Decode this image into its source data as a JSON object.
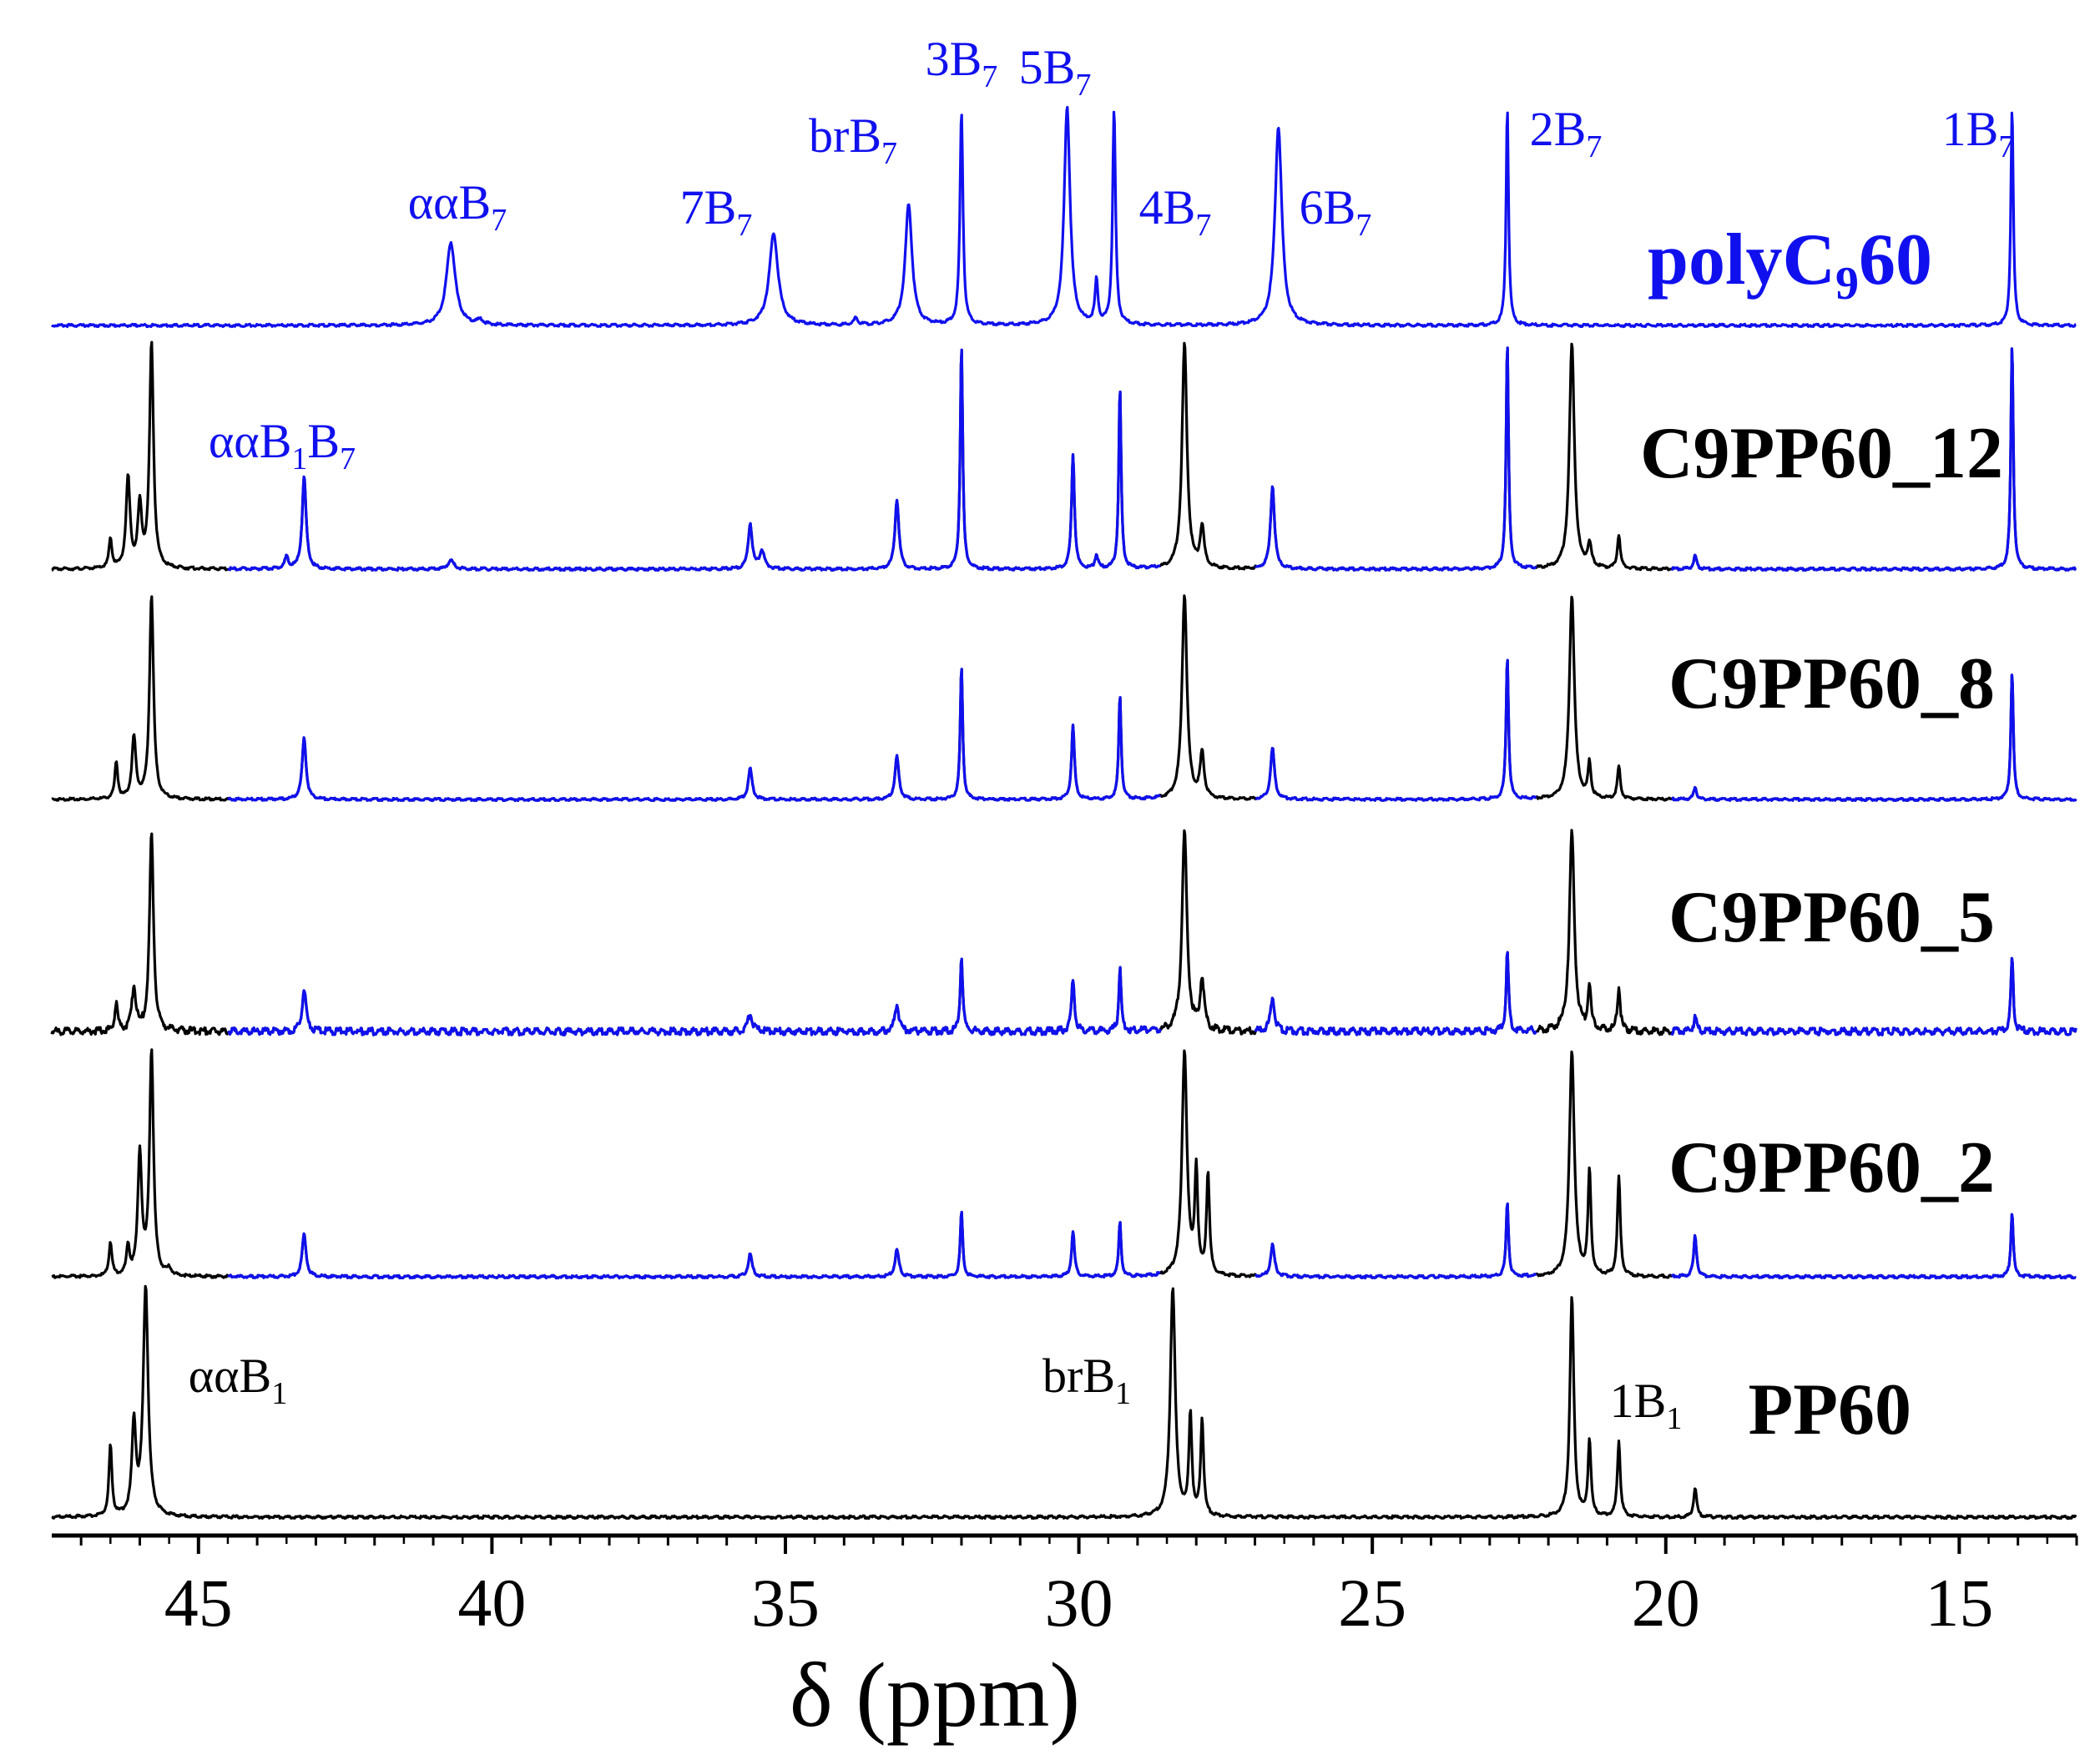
{
  "chart_data": {
    "type": "line",
    "title": "",
    "xlabel": "δ (ppm)",
    "ylabel": "",
    "x_reversed": true,
    "xlim": [
      47.5,
      13.0
    ],
    "x_ticks": [
      45,
      40,
      35,
      30,
      25,
      20,
      15
    ],
    "grid": false,
    "colors": {
      "comonomer": "#1010ee",
      "propylene": "#000000",
      "axis": "#000000"
    },
    "series": [
      {
        "name": "polyC",
        "name_sub": "9",
        "name_tail": "60",
        "color": "#1010ee",
        "peaks": [
          {
            "ppm": 40.7,
            "h": 0.38,
            "w": 0.09
          },
          {
            "ppm": 40.2,
            "h": 0.02,
            "w": 0.06
          },
          {
            "ppm": 35.2,
            "h": 0.42,
            "w": 0.09
          },
          {
            "ppm": 33.8,
            "h": 0.03,
            "w": 0.04
          },
          {
            "ppm": 32.9,
            "h": 0.55,
            "w": 0.07
          },
          {
            "ppm": 32.0,
            "h": 0.98,
            "w": 0.03
          },
          {
            "ppm": 30.2,
            "h": 1.0,
            "w": 0.06
          },
          {
            "ppm": 29.7,
            "h": 0.2,
            "w": 0.03
          },
          {
            "ppm": 29.4,
            "h": 0.98,
            "w": 0.03
          },
          {
            "ppm": 26.6,
            "h": 0.91,
            "w": 0.07
          },
          {
            "ppm": 22.7,
            "h": 1.0,
            "w": 0.025
          },
          {
            "ppm": 14.1,
            "h": 1.0,
            "w": 0.025
          }
        ]
      },
      {
        "name": "C9PP60_12",
        "color": "#000000",
        "blue_segments": [
          [
            44.5,
            28.6
          ],
          [
            27.0,
            22.2
          ],
          [
            19.9,
            13.0
          ]
        ],
        "peaks": [
          {
            "ppm": 46.5,
            "h": 0.13,
            "w": 0.03
          },
          {
            "ppm": 46.2,
            "h": 0.4,
            "w": 0.04
          },
          {
            "ppm": 46.0,
            "h": 0.27,
            "w": 0.04
          },
          {
            "ppm": 45.8,
            "h": 1.0,
            "w": 0.04
          },
          {
            "ppm": 43.2,
            "h": 0.41,
            "w": 0.04
          },
          {
            "ppm": 43.5,
            "h": 0.05,
            "w": 0.04
          },
          {
            "ppm": 40.7,
            "h": 0.04,
            "w": 0.06
          },
          {
            "ppm": 35.6,
            "h": 0.2,
            "w": 0.04
          },
          {
            "ppm": 35.4,
            "h": 0.08,
            "w": 0.05
          },
          {
            "ppm": 33.1,
            "h": 0.31,
            "w": 0.04
          },
          {
            "ppm": 32.0,
            "h": 1.0,
            "w": 0.025
          },
          {
            "ppm": 30.1,
            "h": 0.51,
            "w": 0.03
          },
          {
            "ppm": 29.7,
            "h": 0.06,
            "w": 0.03
          },
          {
            "ppm": 29.3,
            "h": 0.8,
            "w": 0.025
          },
          {
            "ppm": 28.2,
            "h": 1.0,
            "w": 0.05
          },
          {
            "ppm": 27.9,
            "h": 0.18,
            "w": 0.04
          },
          {
            "ppm": 26.7,
            "h": 0.37,
            "w": 0.04
          },
          {
            "ppm": 22.7,
            "h": 1.0,
            "w": 0.025
          },
          {
            "ppm": 21.6,
            "h": 1.0,
            "w": 0.05
          },
          {
            "ppm": 21.3,
            "h": 0.1,
            "w": 0.04
          },
          {
            "ppm": 20.8,
            "h": 0.15,
            "w": 0.03
          },
          {
            "ppm": 19.5,
            "h": 0.06,
            "w": 0.03
          },
          {
            "ppm": 14.1,
            "h": 1.0,
            "w": 0.025
          }
        ]
      },
      {
        "name": "C9PP60_8",
        "color": "#000000",
        "blue_segments": [
          [
            44.5,
            28.6
          ],
          [
            27.0,
            22.2
          ],
          [
            19.9,
            13.0
          ]
        ],
        "peaks": [
          {
            "ppm": 46.4,
            "h": 0.18,
            "w": 0.03
          },
          {
            "ppm": 46.1,
            "h": 0.3,
            "w": 0.04
          },
          {
            "ppm": 45.8,
            "h": 1.0,
            "w": 0.04
          },
          {
            "ppm": 43.2,
            "h": 0.3,
            "w": 0.04
          },
          {
            "ppm": 35.6,
            "h": 0.15,
            "w": 0.04
          },
          {
            "ppm": 33.1,
            "h": 0.21,
            "w": 0.04
          },
          {
            "ppm": 32.0,
            "h": 0.65,
            "w": 0.025
          },
          {
            "ppm": 30.1,
            "h": 0.36,
            "w": 0.03
          },
          {
            "ppm": 29.3,
            "h": 0.51,
            "w": 0.025
          },
          {
            "ppm": 28.2,
            "h": 1.0,
            "w": 0.05
          },
          {
            "ppm": 27.9,
            "h": 0.22,
            "w": 0.04
          },
          {
            "ppm": 26.7,
            "h": 0.25,
            "w": 0.04
          },
          {
            "ppm": 22.7,
            "h": 0.7,
            "w": 0.025
          },
          {
            "ppm": 21.6,
            "h": 1.0,
            "w": 0.05
          },
          {
            "ppm": 21.3,
            "h": 0.17,
            "w": 0.03
          },
          {
            "ppm": 20.8,
            "h": 0.16,
            "w": 0.03
          },
          {
            "ppm": 19.5,
            "h": 0.06,
            "w": 0.03
          },
          {
            "ppm": 14.1,
            "h": 0.63,
            "w": 0.025
          }
        ]
      },
      {
        "name": "C9PP60_5",
        "color": "#000000",
        "blue_segments": [
          [
            44.5,
            28.6
          ],
          [
            27.0,
            22.2
          ],
          [
            19.9,
            13.0
          ]
        ],
        "peaks": [
          {
            "ppm": 46.4,
            "h": 0.14,
            "w": 0.03
          },
          {
            "ppm": 46.1,
            "h": 0.22,
            "w": 0.04
          },
          {
            "ppm": 45.8,
            "h": 1.0,
            "w": 0.04
          },
          {
            "ppm": 43.2,
            "h": 0.22,
            "w": 0.04
          },
          {
            "ppm": 35.6,
            "h": 0.1,
            "w": 0.04
          },
          {
            "ppm": 33.1,
            "h": 0.14,
            "w": 0.04
          },
          {
            "ppm": 32.0,
            "h": 0.38,
            "w": 0.025
          },
          {
            "ppm": 30.1,
            "h": 0.27,
            "w": 0.03
          },
          {
            "ppm": 29.3,
            "h": 0.31,
            "w": 0.025
          },
          {
            "ppm": 28.2,
            "h": 1.0,
            "w": 0.05
          },
          {
            "ppm": 27.9,
            "h": 0.26,
            "w": 0.04
          },
          {
            "ppm": 26.7,
            "h": 0.17,
            "w": 0.04
          },
          {
            "ppm": 22.7,
            "h": 0.4,
            "w": 0.025
          },
          {
            "ppm": 21.6,
            "h": 1.0,
            "w": 0.05
          },
          {
            "ppm": 21.3,
            "h": 0.23,
            "w": 0.03
          },
          {
            "ppm": 20.8,
            "h": 0.22,
            "w": 0.03
          },
          {
            "ppm": 19.5,
            "h": 0.07,
            "w": 0.03
          },
          {
            "ppm": 14.1,
            "h": 0.37,
            "w": 0.025
          }
        ]
      },
      {
        "name": "C9PP60_2",
        "color": "#000000",
        "blue_segments": [
          [
            44.5,
            28.6
          ],
          [
            27.0,
            22.2
          ],
          [
            19.9,
            13.0
          ]
        ],
        "peaks": [
          {
            "ppm": 46.5,
            "h": 0.15,
            "w": 0.03
          },
          {
            "ppm": 46.2,
            "h": 0.13,
            "w": 0.03
          },
          {
            "ppm": 46.0,
            "h": 0.54,
            "w": 0.04
          },
          {
            "ppm": 45.8,
            "h": 1.0,
            "w": 0.04
          },
          {
            "ppm": 45.5,
            "h": 0.03,
            "w": 0.04
          },
          {
            "ppm": 43.2,
            "h": 0.19,
            "w": 0.04
          },
          {
            "ppm": 35.6,
            "h": 0.1,
            "w": 0.04
          },
          {
            "ppm": 33.1,
            "h": 0.12,
            "w": 0.04
          },
          {
            "ppm": 32.0,
            "h": 0.29,
            "w": 0.025
          },
          {
            "ppm": 30.1,
            "h": 0.2,
            "w": 0.03
          },
          {
            "ppm": 29.3,
            "h": 0.24,
            "w": 0.025
          },
          {
            "ppm": 28.2,
            "h": 1.0,
            "w": 0.05
          },
          {
            "ppm": 28.0,
            "h": 0.46,
            "w": 0.03
          },
          {
            "ppm": 27.8,
            "h": 0.45,
            "w": 0.03
          },
          {
            "ppm": 26.7,
            "h": 0.14,
            "w": 0.04
          },
          {
            "ppm": 22.7,
            "h": 0.33,
            "w": 0.025
          },
          {
            "ppm": 21.6,
            "h": 1.0,
            "w": 0.05
          },
          {
            "ppm": 21.3,
            "h": 0.46,
            "w": 0.03
          },
          {
            "ppm": 20.8,
            "h": 0.44,
            "w": 0.03
          },
          {
            "ppm": 19.5,
            "h": 0.18,
            "w": 0.03
          },
          {
            "ppm": 14.1,
            "h": 0.29,
            "w": 0.025
          }
        ]
      },
      {
        "name": "PP60",
        "color": "#000000",
        "blue_segments": [],
        "peaks": [
          {
            "ppm": 46.5,
            "h": 0.31,
            "w": 0.03
          },
          {
            "ppm": 46.1,
            "h": 0.4,
            "w": 0.04
          },
          {
            "ppm": 45.9,
            "h": 1.0,
            "w": 0.05
          },
          {
            "ppm": 28.4,
            "h": 1.0,
            "w": 0.05
          },
          {
            "ppm": 28.1,
            "h": 0.44,
            "w": 0.03
          },
          {
            "ppm": 27.9,
            "h": 0.42,
            "w": 0.03
          },
          {
            "ppm": 21.6,
            "h": 0.96,
            "w": 0.04
          },
          {
            "ppm": 21.3,
            "h": 0.33,
            "w": 0.03
          },
          {
            "ppm": 20.8,
            "h": 0.33,
            "w": 0.03
          },
          {
            "ppm": 19.5,
            "h": 0.13,
            "w": 0.03
          }
        ]
      }
    ],
    "annotations": [
      {
        "base": "ααB",
        "sub": "7",
        "ppm": 40.7,
        "series": "polyC960",
        "color": "#1010ee"
      },
      {
        "base": "7B",
        "sub": "7",
        "ppm": 35.2,
        "series": "polyC960",
        "color": "#1010ee"
      },
      {
        "base": "brB",
        "sub": "7",
        "ppm": 32.9,
        "series": "polyC960",
        "color": "#1010ee"
      },
      {
        "base": "3B",
        "sub": "7",
        "ppm": 32.0,
        "series": "polyC960",
        "color": "#1010ee"
      },
      {
        "base": "5B",
        "sub": "7",
        "ppm": 30.2,
        "series": "polyC960",
        "color": "#1010ee"
      },
      {
        "base": "4B",
        "sub": "7",
        "ppm": 29.4,
        "series": "polyC960",
        "color": "#1010ee"
      },
      {
        "base": "6B",
        "sub": "7",
        "ppm": 26.6,
        "series": "polyC960",
        "color": "#1010ee"
      },
      {
        "base": "2B",
        "sub": "7",
        "ppm": 22.7,
        "series": "polyC960",
        "color": "#1010ee"
      },
      {
        "base": "1B",
        "sub": "7",
        "ppm": 14.1,
        "series": "polyC960",
        "color": "#1010ee"
      },
      {
        "base": "ααB",
        "sub": "1",
        "base2": "B",
        "sub2": "7",
        "ppm": 43.2,
        "series": "C9PP60_12",
        "color": "#1010ee"
      },
      {
        "base": "ααB",
        "sub": "1",
        "ppm": 45.9,
        "series": "PP60",
        "color": "#000000"
      },
      {
        "base": "brB",
        "sub": "1",
        "ppm": 28.4,
        "series": "PP60",
        "color": "#000000"
      },
      {
        "base": "1B",
        "sub": "1",
        "ppm": 20.8,
        "series": "PP60",
        "color": "#000000"
      }
    ]
  }
}
